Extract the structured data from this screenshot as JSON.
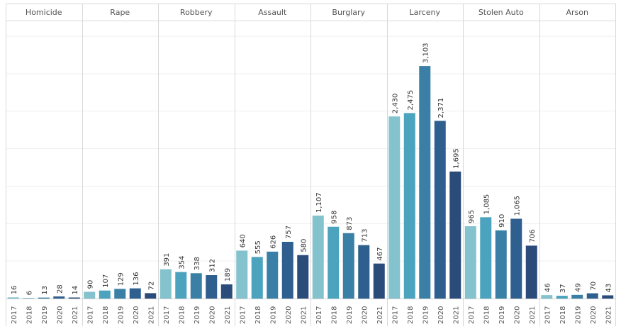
{
  "chart_data": {
    "type": "bar",
    "panels": [
      {
        "category": "Homicide",
        "years": [
          "2017",
          "2018",
          "2019",
          "2020",
          "2021"
        ],
        "values": [
          16,
          6,
          13,
          28,
          14
        ],
        "labels": [
          "16",
          "6",
          "13",
          "28",
          "14"
        ]
      },
      {
        "category": "Rape",
        "years": [
          "2017",
          "2018",
          "2019",
          "2020",
          "2021"
        ],
        "values": [
          90,
          107,
          129,
          136,
          72
        ],
        "labels": [
          "90",
          "107",
          "129",
          "136",
          "72"
        ]
      },
      {
        "category": "Robbery",
        "years": [
          "2017",
          "2018",
          "2019",
          "2020",
          "2021"
        ],
        "values": [
          391,
          354,
          338,
          312,
          189
        ],
        "labels": [
          "391",
          "354",
          "338",
          "312",
          "189"
        ]
      },
      {
        "category": "Assault",
        "years": [
          "2017",
          "2018",
          "2019",
          "2020",
          "2021"
        ],
        "values": [
          640,
          555,
          626,
          757,
          580
        ],
        "labels": [
          "640",
          "555",
          "626",
          "757",
          "580"
        ]
      },
      {
        "category": "Burglary",
        "years": [
          "2017",
          "2018",
          "2019",
          "2020",
          "2021"
        ],
        "values": [
          1107,
          958,
          873,
          713,
          467
        ],
        "labels": [
          "1,107",
          "958",
          "873",
          "713",
          "467"
        ]
      },
      {
        "category": "Larceny",
        "years": [
          "2017",
          "2018",
          "2019",
          "2020",
          "2021"
        ],
        "values": [
          2430,
          2475,
          3103,
          2371,
          1695
        ],
        "labels": [
          "2,430",
          "2,475",
          "3,103",
          "2,371",
          "1,695"
        ]
      },
      {
        "category": "Stolen Auto",
        "years": [
          "2017",
          "2018",
          "2019",
          "2020",
          "2021"
        ],
        "values": [
          965,
          1085,
          910,
          1065,
          706
        ],
        "labels": [
          "965",
          "1,085",
          "910",
          "1,065",
          "706"
        ]
      },
      {
        "category": "Arson",
        "years": [
          "2017",
          "2018",
          "2019",
          "2020",
          "2021"
        ],
        "values": [
          46,
          37,
          49,
          70,
          43
        ],
        "labels": [
          "46",
          "37",
          "49",
          "70",
          "43"
        ]
      }
    ],
    "year_colors": {
      "2017": "#84c3cd",
      "2018": "#4ba3bd",
      "2019": "#3a80a6",
      "2020": "#2e5f8f",
      "2021": "#2b4c7a"
    },
    "ylim": [
      0,
      3700
    ],
    "grid": true
  }
}
